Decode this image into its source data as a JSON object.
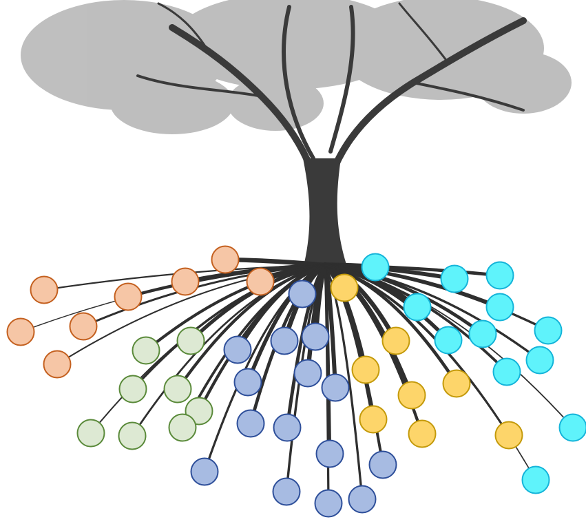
{
  "groups": [
    {
      "fill": "#f6c6a6",
      "stroke": "#c4601f"
    },
    {
      "fill": "#dde9d3",
      "stroke": "#5a8a3a"
    },
    {
      "fill": "#a7bbe2",
      "stroke": "#2e4f9a"
    },
    {
      "fill": "#fdd56a",
      "stroke": "#c49a0a"
    },
    {
      "fill": "#5ff3fb",
      "stroke": "#14b4d9"
    }
  ]
}
